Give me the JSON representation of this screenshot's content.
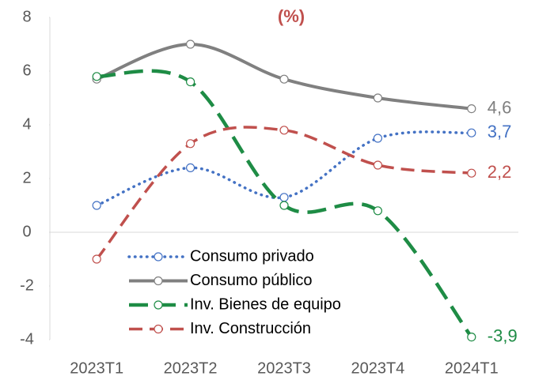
{
  "chart_data": {
    "type": "line",
    "title": "(%)",
    "title_color": "#c0504d",
    "categories": [
      "2023T1",
      "2023T2",
      "2023T3",
      "2023T4",
      "2024T1"
    ],
    "ylim": [
      -4,
      8
    ],
    "yticks": [
      -4,
      -2,
      0,
      2,
      4,
      6,
      8
    ],
    "series": [
      {
        "name": "Consumo privado",
        "color": "#4472c4",
        "dash": "dotted",
        "values": [
          1.0,
          2.4,
          1.3,
          3.5,
          3.7
        ],
        "value_labels": [
          null,
          null,
          null,
          null,
          "3,7"
        ]
      },
      {
        "name": "Consumo público",
        "color": "#808080",
        "dash": "solid",
        "values": [
          5.7,
          7.0,
          5.7,
          5.0,
          4.6
        ],
        "value_labels": [
          null,
          null,
          null,
          null,
          "4,6"
        ]
      },
      {
        "name": "Inv. Bienes de equipo",
        "color": "#1e8c45",
        "dash": "longdash",
        "values": [
          5.8,
          5.6,
          1.0,
          0.8,
          -3.9
        ],
        "value_labels": [
          null,
          null,
          null,
          null,
          "-3,9"
        ]
      },
      {
        "name": "Inv. Construcción",
        "color": "#c0504d",
        "dash": "dash",
        "values": [
          -1.0,
          3.3,
          3.8,
          2.5,
          2.2
        ],
        "value_labels": [
          null,
          null,
          null,
          null,
          "2,2"
        ]
      }
    ]
  }
}
